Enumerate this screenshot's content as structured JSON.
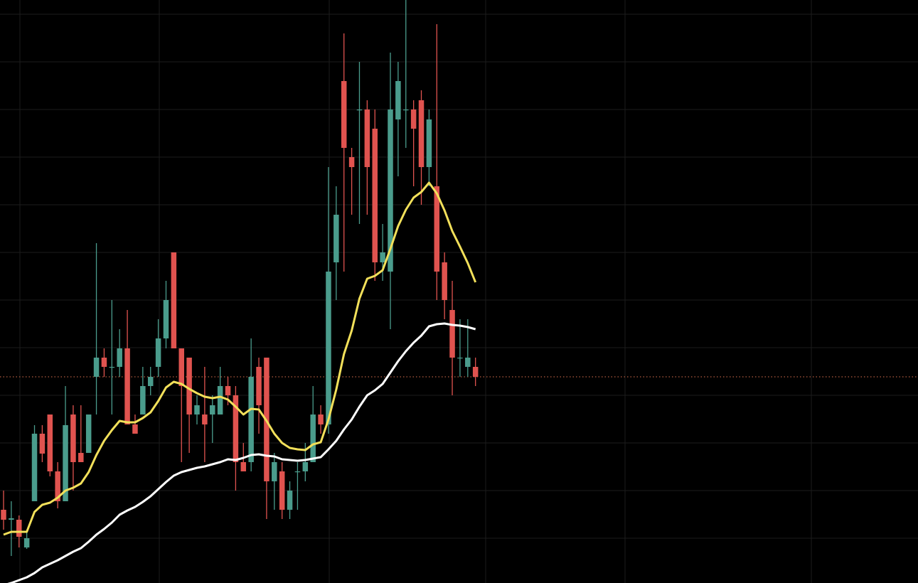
{
  "chart_data": {
    "type": "candlestick",
    "ylim": [
      0,
      820
    ],
    "up_color": "#4a9c8c",
    "down_color": "#e0534f",
    "open": [
      103,
      89,
      89,
      50,
      115,
      210,
      237,
      157,
      115,
      237,
      183,
      183,
      290,
      317,
      303,
      304,
      330,
      223,
      237,
      277,
      304,
      344,
      465,
      330,
      317,
      237,
      237,
      237,
      237,
      277,
      264,
      170,
      170,
      304,
      317,
      143,
      157,
      103,
      156,
      157,
      170,
      237,
      223,
      451,
      706,
      599,
      665,
      666,
      639,
      451,
      438,
      652,
      665,
      666,
      679,
      585,
      558,
      451,
      384,
      316,
      304,
      304
    ],
    "high": [
      130,
      115,
      95,
      75,
      222,
      222,
      237,
      170,
      277,
      250,
      250,
      237,
      478,
      330,
      398,
      357,
      384,
      237,
      304,
      304,
      371,
      425,
      465,
      330,
      317,
      264,
      304,
      264,
      304,
      290,
      277,
      197,
      344,
      317,
      317,
      183,
      170,
      143,
      170,
      197,
      277,
      250,
      585,
      558,
      773,
      612,
      733,
      679,
      666,
      505,
      746,
      733,
      820,
      679,
      693,
      666,
      786,
      465,
      425,
      371,
      371,
      317
    ],
    "low": [
      75,
      38,
      50,
      48,
      115,
      170,
      150,
      105,
      115,
      130,
      170,
      183,
      237,
      290,
      237,
      290,
      223,
      210,
      237,
      264,
      290,
      330,
      330,
      170,
      183,
      223,
      170,
      197,
      237,
      250,
      130,
      157,
      157,
      210,
      90,
      103,
      90,
      90,
      103,
      143,
      170,
      210,
      210,
      398,
      438,
      518,
      505,
      518,
      425,
      425,
      357,
      572,
      612,
      558,
      532,
      558,
      398,
      371,
      264,
      290,
      290,
      277
    ],
    "close": [
      89,
      91,
      65,
      63,
      210,
      182,
      157,
      115,
      222,
      170,
      170,
      237,
      317,
      304,
      304,
      330,
      223,
      210,
      277,
      290,
      344,
      398,
      330,
      277,
      237,
      250,
      223,
      250,
      277,
      264,
      170,
      157,
      290,
      250,
      143,
      170,
      103,
      130,
      157,
      170,
      237,
      223,
      438,
      518,
      612,
      585,
      666,
      585,
      451,
      465,
      666,
      706,
      666,
      639,
      585,
      652,
      438,
      398,
      317,
      317,
      317,
      290
    ],
    "lines": [
      {
        "color": "#f2e05a",
        "values": [
          68,
          72,
          72,
          72,
          100,
          110,
          113,
          120,
          130,
          134,
          140,
          156,
          180,
          200,
          215,
          228,
          226,
          226,
          232,
          240,
          256,
          275,
          283,
          280,
          273,
          267,
          262,
          260,
          262,
          258,
          248,
          237,
          245,
          244,
          228,
          210,
          197,
          190,
          188,
          187,
          195,
          198,
          230,
          272,
          322,
          355,
          400,
          428,
          432,
          440,
          470,
          502,
          525,
          542,
          550,
          563,
          548,
          524,
          495,
          473,
          450,
          423
        ]
      },
      {
        "color": "#ffffff",
        "values": [
          -3,
          0,
          4,
          8,
          14,
          22,
          27,
          32,
          38,
          44,
          49,
          58,
          68,
          76,
          85,
          96,
          102,
          107,
          114,
          122,
          132,
          142,
          151,
          156,
          159,
          162,
          164,
          167,
          170,
          174,
          173,
          176,
          180,
          181,
          179,
          178,
          174,
          173,
          172,
          173,
          175,
          177,
          188,
          200,
          216,
          230,
          248,
          264,
          271,
          280,
          296,
          312,
          326,
          338,
          348,
          361,
          364,
          365,
          363,
          362,
          360,
          357
        ]
      }
    ],
    "price_line": {
      "value": 290,
      "color": "#e0744f"
    }
  }
}
